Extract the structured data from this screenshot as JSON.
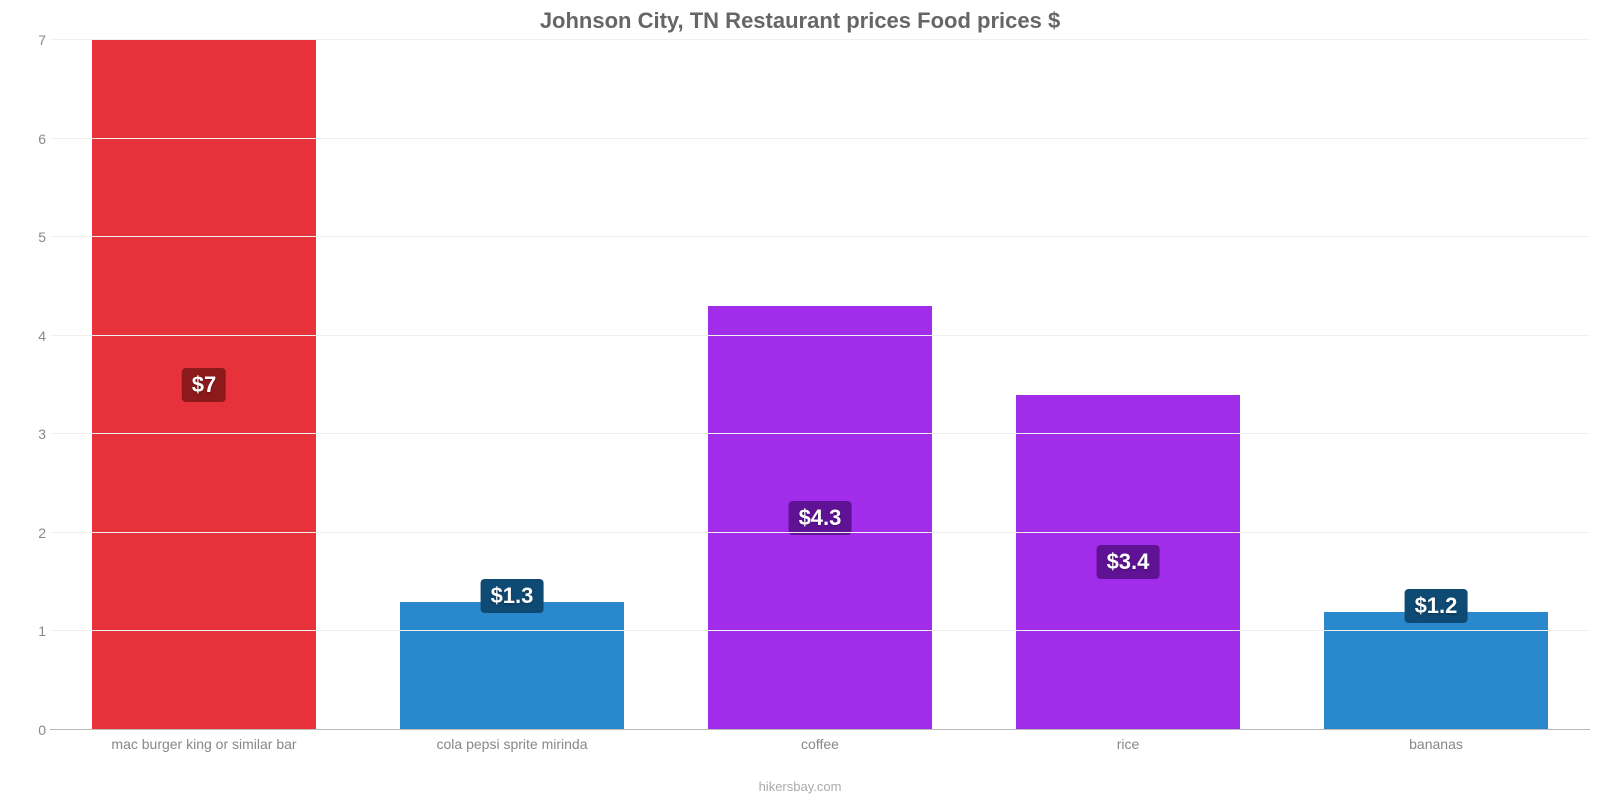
{
  "chart": {
    "type": "bar",
    "title": "Johnson City, TN Restaurant prices Food prices $",
    "title_color": "#666666",
    "title_fontsize": 22,
    "background_color": "#ffffff",
    "grid_color": "#f0f0f0",
    "axis_color": "#bbbbbb",
    "ymin": 0,
    "ymax": 7,
    "ytick_step": 1,
    "yticks": [
      0,
      1,
      2,
      3,
      4,
      5,
      6,
      7
    ],
    "ytick_color": "#888888",
    "ytick_fontsize": 14,
    "xlabel_color": "#888888",
    "xlabel_fontsize": 14,
    "bar_width_pct": 73,
    "categories": [
      "mac burger king or similar bar",
      "cola pepsi sprite mirinda",
      "coffee",
      "rice",
      "bananas"
    ],
    "values": [
      7,
      1.3,
      4.3,
      3.4,
      1.2
    ],
    "value_labels": [
      "$7",
      "$1.3",
      "$4.3",
      "$3.4",
      "$1.2"
    ],
    "bar_colors": [
      "#e8323b",
      "#2a89cc",
      "#a12cea",
      "#a12cea",
      "#2a89cc"
    ],
    "badge_bg_colors": [
      "#8d1a1a",
      "#0e4a73",
      "#5f1394",
      "#5f1394",
      "#0e4a73"
    ],
    "badge_text_color": "#ffffff",
    "badge_fontsize": 22,
    "credit": "hikersbay.com",
    "credit_color": "#aaaaaa"
  }
}
